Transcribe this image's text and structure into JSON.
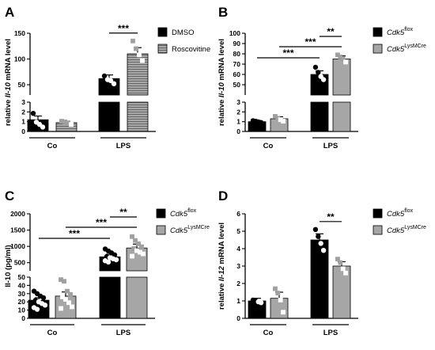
{
  "chart_data": [
    {
      "panel": "A",
      "type": "bar",
      "ylabel_parts": [
        {
          "t": "relative ",
          "i": false
        },
        {
          "t": "Il-10",
          "i": true
        },
        {
          "t": " mRNA level",
          "i": false
        }
      ],
      "groups": [
        "Co",
        "LPS"
      ],
      "series": [
        {
          "name": "DMSO",
          "values": [
            1.2,
            62
          ],
          "sem": [
            0.38,
            7
          ],
          "points": [
            [
              1.85,
              0.95,
              0.72,
              0.45
            ],
            [
              67,
              60,
              58,
              52
            ]
          ]
        },
        {
          "name": "Roscovitine",
          "values": [
            0.9,
            110
          ],
          "sem": [
            0.15,
            12
          ],
          "points": [
            [
              1.05,
              0.98,
              0.88,
              0.72
            ],
            [
              135,
              120,
              108,
              97
            ]
          ]
        }
      ],
      "break": {
        "lower": [
          0,
          3
        ],
        "upper": [
          30,
          150
        ]
      },
      "lower_ticks": [
        "0",
        "1",
        "2",
        "3"
      ],
      "upper_ticks": [
        "50",
        "100",
        "150"
      ],
      "annotations": [
        {
          "label": "***",
          "from": "LPS-0",
          "to": "LPS-1"
        }
      ]
    },
    {
      "panel": "B",
      "type": "bar",
      "ylabel_parts": [
        {
          "t": "relative ",
          "i": false
        },
        {
          "t": "Il-10",
          "i": true
        },
        {
          "t": " mRNA level",
          "i": false
        }
      ],
      "groups": [
        "Co",
        "LPS"
      ],
      "series": [
        {
          "name_main": "Cdk5",
          "name_sup": "flox",
          "values": [
            1.0,
            60
          ],
          "sem": [
            0.1,
            3.5
          ],
          "points": [
            [
              1.1,
              1.05,
              0.98,
              0.92
            ],
            [
              67,
              62,
              58,
              55
            ]
          ]
        },
        {
          "name_main": "Cdk5",
          "name_sup": "LysMCre",
          "values": [
            1.3,
            75
          ],
          "sem": [
            0.2,
            3
          ],
          "points": [
            [
              1.55,
              1.35,
              1.2,
              1.05
            ],
            [
              79,
              77,
              75,
              72
            ]
          ]
        }
      ],
      "break": {
        "lower": [
          0,
          3
        ],
        "upper": [
          40,
          100
        ]
      },
      "lower_ticks": [
        "0",
        "1",
        "2",
        "3"
      ],
      "upper_ticks": [
        "50",
        "60",
        "70",
        "80",
        "90",
        "100"
      ],
      "annotations": [
        {
          "label": "***",
          "from": "Co-0",
          "to": "LPS-0"
        },
        {
          "label": "***",
          "from": "Co-1",
          "to": "LPS-1"
        },
        {
          "label": "**",
          "from": "LPS-0",
          "to": "LPS-1"
        }
      ]
    },
    {
      "panel": "C",
      "type": "bar",
      "ylabel_parts": [
        {
          "t": "Il-10 (pg/ml)",
          "i": false
        }
      ],
      "groups": [
        "Co",
        "LPS"
      ],
      "series": [
        {
          "name_main": "Cdk5",
          "name_sup": "flox",
          "values": [
            22,
            680
          ],
          "sem": [
            3,
            80
          ],
          "points": [
            [
              33,
              30,
              27,
              25,
              22,
              20,
              18,
              16,
              13,
              11
            ],
            [
              920,
              860,
              800,
              740,
              690,
              650,
              620,
              590,
              560,
              520
            ]
          ]
        },
        {
          "name_main": "Cdk5",
          "name_sup": "LysMCre",
          "values": [
            27,
            950
          ],
          "sem": [
            5,
            120
          ],
          "points": [
            [
              47,
              45,
              33,
              29,
              26,
              23,
              19,
              14,
              12
            ],
            [
              1300,
              1180,
              1080,
              990,
              930,
              870,
              820,
              770,
              700
            ]
          ]
        }
      ],
      "break": {
        "lower": [
          0,
          50
        ],
        "upper": [
          250,
          2000
        ]
      },
      "lower_ticks": [
        "0",
        "10",
        "20",
        "30",
        "40",
        "50"
      ],
      "upper_ticks": [
        "500",
        "1000",
        "1500",
        "2000"
      ],
      "annotations": [
        {
          "label": "***",
          "from": "Co-0",
          "to": "LPS-0"
        },
        {
          "label": "***",
          "from": "Co-1",
          "to": "LPS-1"
        },
        {
          "label": "**",
          "from": "LPS-0",
          "to": "LPS-1"
        }
      ]
    },
    {
      "panel": "D",
      "type": "bar",
      "ylabel_parts": [
        {
          "t": "relative ",
          "i": false
        },
        {
          "t": "Il-12",
          "i": true
        },
        {
          "t": " mRNA level",
          "i": false
        }
      ],
      "groups": [
        "Co",
        "LPS"
      ],
      "series": [
        {
          "name_main": "Cdk5",
          "name_sup": "flox",
          "values": [
            1.0,
            4.5
          ],
          "sem": [
            0.15,
            0.35
          ],
          "points": [
            [
              1.05,
              1.0,
              0.95,
              0.9
            ],
            [
              5.1,
              4.7,
              4.3,
              3.9
            ]
          ]
        },
        {
          "name_main": "Cdk5",
          "name_sup": "LysMCre",
          "values": [
            1.15,
            3.0
          ],
          "sem": [
            0.35,
            0.25
          ],
          "points": [
            [
              1.7,
              1.45,
              1.05,
              0.35
            ],
            [
              3.4,
              3.2,
              2.85,
              2.6
            ]
          ]
        }
      ],
      "ylim": [
        0,
        6
      ],
      "yticks": [
        "0",
        "1",
        "2",
        "3",
        "4",
        "5",
        "6"
      ],
      "annotations": [
        {
          "label": "**",
          "from": "LPS-0",
          "to": "LPS-1"
        }
      ]
    }
  ],
  "colors": {
    "black_bar": "#000000",
    "grey_bar": "#a6a6a6",
    "hatched_bar": "#9a9a9a",
    "open_marker": "#ffffff",
    "grey_marker": "#a0a0a0"
  }
}
